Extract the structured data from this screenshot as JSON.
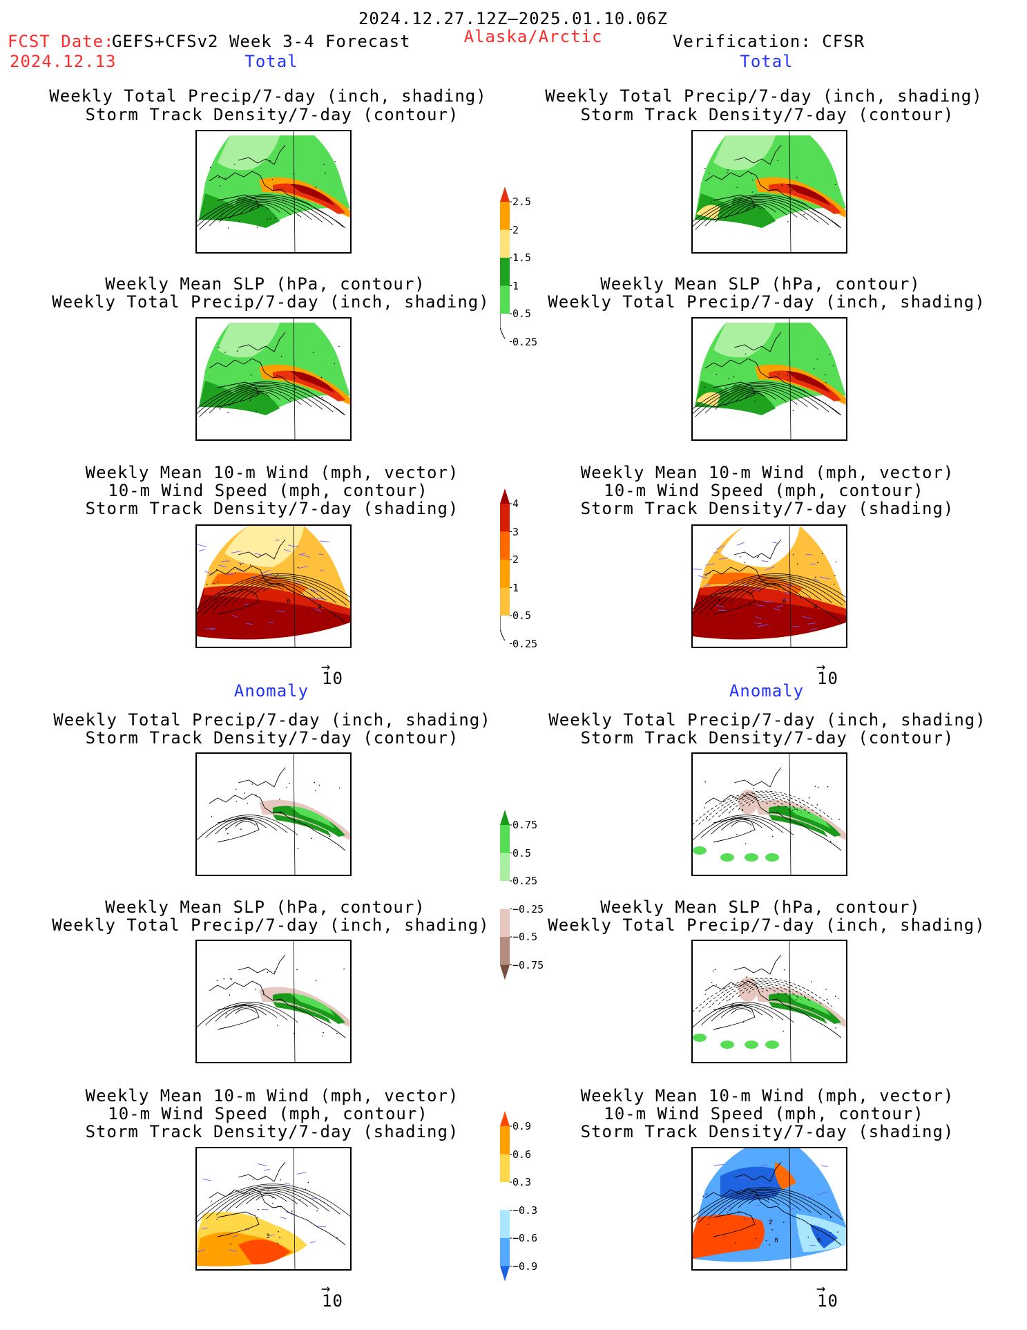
{
  "header": {
    "period": "2024.12.27.12Z–2025.01.10.06Z",
    "fcst_label": "FCST Date:",
    "model": "GEFS+CFSv2 Week 3-4 Forecast",
    "fcst_date": "2024.12.13",
    "region": "Alaska/Arctic",
    "verification": "Verification: CFSR"
  },
  "sections": {
    "total": "Total",
    "anomaly": "Anomaly"
  },
  "titles": {
    "precip_storm": [
      "Weekly Total Precip/7-day (inch, shading)",
      "Storm Track Density/7-day (contour)"
    ],
    "slp_precip": [
      "Weekly Mean SLP (hPa, contour)",
      "Weekly Total Precip/7-day (inch, shading)"
    ],
    "wind_storm": [
      "Weekly Mean 10-m Wind (mph, vector)",
      "10-m Wind Speed (mph, contour)",
      "Storm Track Density/7-day (shading)"
    ]
  },
  "vector_ref": "10",
  "colorbars": {
    "precip_total": {
      "labels": [
        "2.5",
        "2",
        "1.5",
        "1",
        "0.5",
        "0.25"
      ],
      "colors": [
        "#e8320e",
        "#ff9f00",
        "#ffe27a",
        "#1fa21f",
        "#55dd55",
        "#aaf0a0"
      ]
    },
    "storm_total": {
      "labels": [
        "4",
        "3",
        "2",
        "1",
        "0.5",
        "0.25"
      ],
      "colors": [
        "#a00000",
        "#d81e05",
        "#ff6a00",
        "#ff9f00",
        "#ffc13c",
        "#ffeea0"
      ]
    },
    "precip_anom": {
      "labels": [
        "0.75",
        "0.5",
        "0.25",
        "−0.25",
        "−0.5",
        "−0.75"
      ],
      "colors": [
        "#1a9a1a",
        "#55dd55",
        "#a8f0a0",
        "#ffffff",
        "#e6c8c0",
        "#b48c80",
        "#7a5040"
      ]
    },
    "storm_anom": {
      "labels": [
        "0.9",
        "0.6",
        "0.3",
        "−0.3",
        "−0.6",
        "−0.9"
      ],
      "colors": [
        "#ff4a00",
        "#ff9f00",
        "#ffd84a",
        "#ffffff",
        "#aae6ff",
        "#55aaff",
        "#1e64e0"
      ]
    },
    "wind_contour_labels": [
      "6",
      "4",
      "2",
      "8",
      "6",
      "3"
    ]
  }
}
